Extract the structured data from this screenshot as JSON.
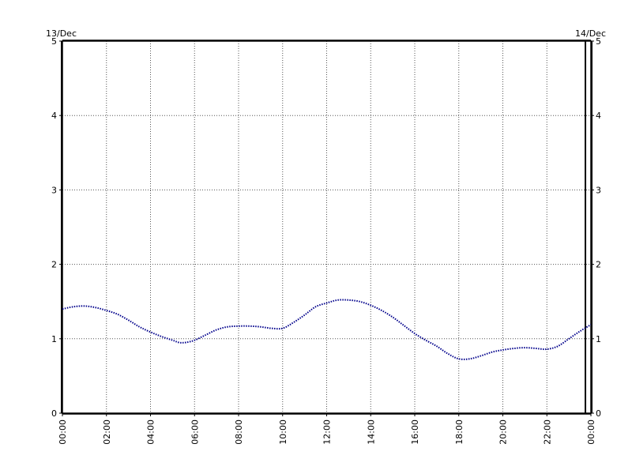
{
  "chart_data": {
    "type": "line",
    "title": "",
    "xlabel": "",
    "ylabel": "",
    "start_date_label": "13/Dec",
    "end_date_label": "14/Dec",
    "x_unit": "hours",
    "xlim": [
      0,
      24
    ],
    "ylim": [
      0,
      5
    ],
    "y_ticks": [
      0,
      1,
      2,
      3,
      4,
      5
    ],
    "x_ticks": [
      {
        "x": 0,
        "label": "00:00"
      },
      {
        "x": 2,
        "label": "02:00"
      },
      {
        "x": 4,
        "label": "04:00"
      },
      {
        "x": 6,
        "label": "06:00"
      },
      {
        "x": 8,
        "label": "08:00"
      },
      {
        "x": 10,
        "label": "10:00"
      },
      {
        "x": 12,
        "label": "12:00"
      },
      {
        "x": 14,
        "label": "14:00"
      },
      {
        "x": 16,
        "label": "16:00"
      },
      {
        "x": 18,
        "label": "18:00"
      },
      {
        "x": 20,
        "label": "20:00"
      },
      {
        "x": 22,
        "label": "22:00"
      },
      {
        "x": 24,
        "label": "00:00"
      }
    ],
    "grid": true,
    "now_marker_x": 23.75,
    "series": [
      {
        "name": "",
        "color": "#00008b",
        "style": "dotted",
        "points": [
          [
            0.0,
            1.4
          ],
          [
            0.5,
            1.43
          ],
          [
            1.0,
            1.44
          ],
          [
            1.5,
            1.42
          ],
          [
            2.0,
            1.38
          ],
          [
            2.5,
            1.33
          ],
          [
            3.0,
            1.25
          ],
          [
            3.5,
            1.16
          ],
          [
            4.0,
            1.09
          ],
          [
            4.5,
            1.03
          ],
          [
            5.0,
            0.98
          ],
          [
            5.3,
            0.95
          ],
          [
            5.6,
            0.95
          ],
          [
            6.0,
            0.98
          ],
          [
            6.5,
            1.05
          ],
          [
            7.0,
            1.12
          ],
          [
            7.5,
            1.16
          ],
          [
            8.0,
            1.17
          ],
          [
            8.5,
            1.17
          ],
          [
            9.0,
            1.16
          ],
          [
            9.5,
            1.14
          ],
          [
            10.0,
            1.14
          ],
          [
            10.5,
            1.22
          ],
          [
            11.0,
            1.32
          ],
          [
            11.5,
            1.43
          ],
          [
            12.0,
            1.48
          ],
          [
            12.5,
            1.52
          ],
          [
            13.0,
            1.52
          ],
          [
            13.5,
            1.5
          ],
          [
            14.0,
            1.45
          ],
          [
            14.5,
            1.38
          ],
          [
            15.0,
            1.29
          ],
          [
            15.5,
            1.18
          ],
          [
            16.0,
            1.07
          ],
          [
            16.5,
            0.98
          ],
          [
            17.0,
            0.9
          ],
          [
            17.5,
            0.8
          ],
          [
            18.0,
            0.73
          ],
          [
            18.5,
            0.73
          ],
          [
            19.0,
            0.77
          ],
          [
            19.5,
            0.82
          ],
          [
            20.0,
            0.85
          ],
          [
            20.5,
            0.87
          ],
          [
            21.0,
            0.88
          ],
          [
            21.5,
            0.87
          ],
          [
            22.0,
            0.86
          ],
          [
            22.5,
            0.9
          ],
          [
            23.0,
            1.0
          ],
          [
            23.5,
            1.1
          ],
          [
            24.0,
            1.19
          ]
        ]
      }
    ]
  }
}
